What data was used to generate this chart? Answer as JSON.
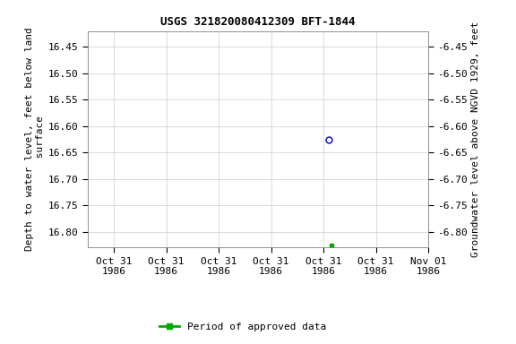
{
  "title": "USGS 321820080412309 BFT-1844",
  "left_ylabel": "Depth to water level, feet below land\n surface",
  "right_ylabel": "Groundwater level above NGVD 1929, feet",
  "ylim_left": [
    16.83,
    16.42
  ],
  "ylim_right": [
    -6.83,
    -6.42
  ],
  "yticks_left": [
    16.45,
    16.5,
    16.55,
    16.6,
    16.65,
    16.7,
    16.75,
    16.8
  ],
  "yticks_right": [
    -6.45,
    -6.5,
    -6.55,
    -6.6,
    -6.65,
    -6.7,
    -6.75,
    -6.8
  ],
  "data_x_blue": [
    4.6
  ],
  "data_y_blue": [
    16.625
  ],
  "data_x_green": [
    4.65
  ],
  "data_y_green": [
    16.825
  ],
  "blue_color": "#0000cc",
  "green_color": "#00aa00",
  "background_color": "#ffffff",
  "grid_color": "#cccccc",
  "title_fontsize": 9,
  "axis_label_fontsize": 8,
  "tick_fontsize": 8,
  "legend_label": "Period of approved data",
  "xlim": [
    0,
    6.5
  ],
  "xtick_positions": [
    0.5,
    1.5,
    2.5,
    3.5,
    4.5,
    5.5,
    6.5
  ],
  "xtick_labels": [
    "Oct 31\n1986",
    "Oct 31\n1986",
    "Oct 31\n1986",
    "Oct 31\n1986",
    "Oct 31\n1986",
    "Oct 31\n1986",
    "Nov 01\n1986"
  ]
}
